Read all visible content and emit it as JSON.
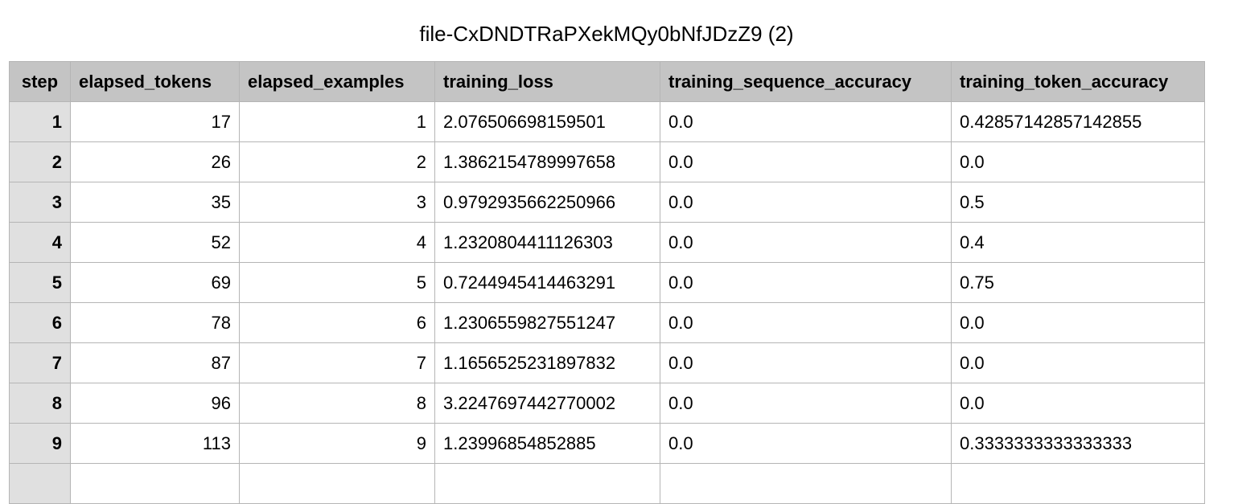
{
  "title": "file-CxDNDTRaPXekMQy0bNfJDzZ9 (2)",
  "columns": [
    "step",
    "elapsed_tokens",
    "elapsed_examples",
    "training_loss",
    "training_sequence_accuracy",
    "training_token_accuracy"
  ],
  "rows": [
    [
      "1",
      "17",
      "1",
      "2.076506698159501",
      "0.0",
      "0.42857142857142855"
    ],
    [
      "2",
      "26",
      "2",
      "1.3862154789997658",
      "0.0",
      "0.0"
    ],
    [
      "3",
      "35",
      "3",
      "0.9792935662250966",
      "0.0",
      "0.5"
    ],
    [
      "4",
      "52",
      "4",
      "1.2320804411126303",
      "0.0",
      "0.4"
    ],
    [
      "5",
      "69",
      "5",
      "0.7244945414463291",
      "0.0",
      "0.75"
    ],
    [
      "6",
      "78",
      "6",
      "1.2306559827551247",
      "0.0",
      "0.0"
    ],
    [
      "7",
      "87",
      "7",
      "1.1656525231897832",
      "0.0",
      "0.0"
    ],
    [
      "8",
      "96",
      "8",
      "3.2247697442770002",
      "0.0",
      "0.0"
    ],
    [
      "9",
      "113",
      "9",
      "1.23996854852885",
      "0.0",
      "0.3333333333333333"
    ]
  ]
}
